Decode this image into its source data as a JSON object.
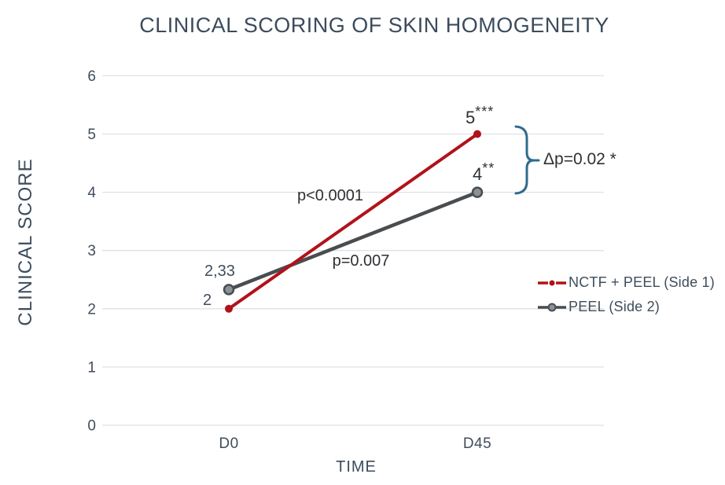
{
  "chart_data": {
    "type": "line",
    "title": "CLINICAL SCORING OF SKIN HOMOGENEITY",
    "xlabel": "TIME",
    "ylabel": "CLINICAL SCORE",
    "categories": [
      "D0",
      "D45"
    ],
    "yticks": [
      0,
      1,
      2,
      3,
      4,
      5,
      6
    ],
    "ylim": [
      0,
      6
    ],
    "grid": "horizontal",
    "legend_position": "right",
    "series": [
      {
        "name": "NCTF + PEEL (Side 1)",
        "values": [
          2,
          5
        ],
        "color": "#b1121a",
        "point_labels": [
          "2",
          "5"
        ],
        "significance": [
          "",
          "***"
        ]
      },
      {
        "name": "PEEL (Side 2)",
        "values": [
          2.33,
          4
        ],
        "color": "#4a4d50",
        "marker_fill": "#899199",
        "point_labels": [
          "2,33",
          "4"
        ],
        "significance": [
          "",
          "**"
        ]
      }
    ],
    "annotations": [
      {
        "id": "red-line-p-value",
        "text": "p<0.0001"
      },
      {
        "id": "gray-line-p-value",
        "text": "p=0.007"
      },
      {
        "id": "delta-p-value",
        "text": "Δp=0.02 *",
        "type": "bracket",
        "between_scores": [
          5,
          4
        ]
      }
    ],
    "colors": {
      "title_text": "#3c4b5c",
      "axis_text": "#3f4d5c",
      "annotation_text": "#2d3034",
      "gridline": "#dfe1e3",
      "bracket": "#2f6b8f"
    }
  }
}
